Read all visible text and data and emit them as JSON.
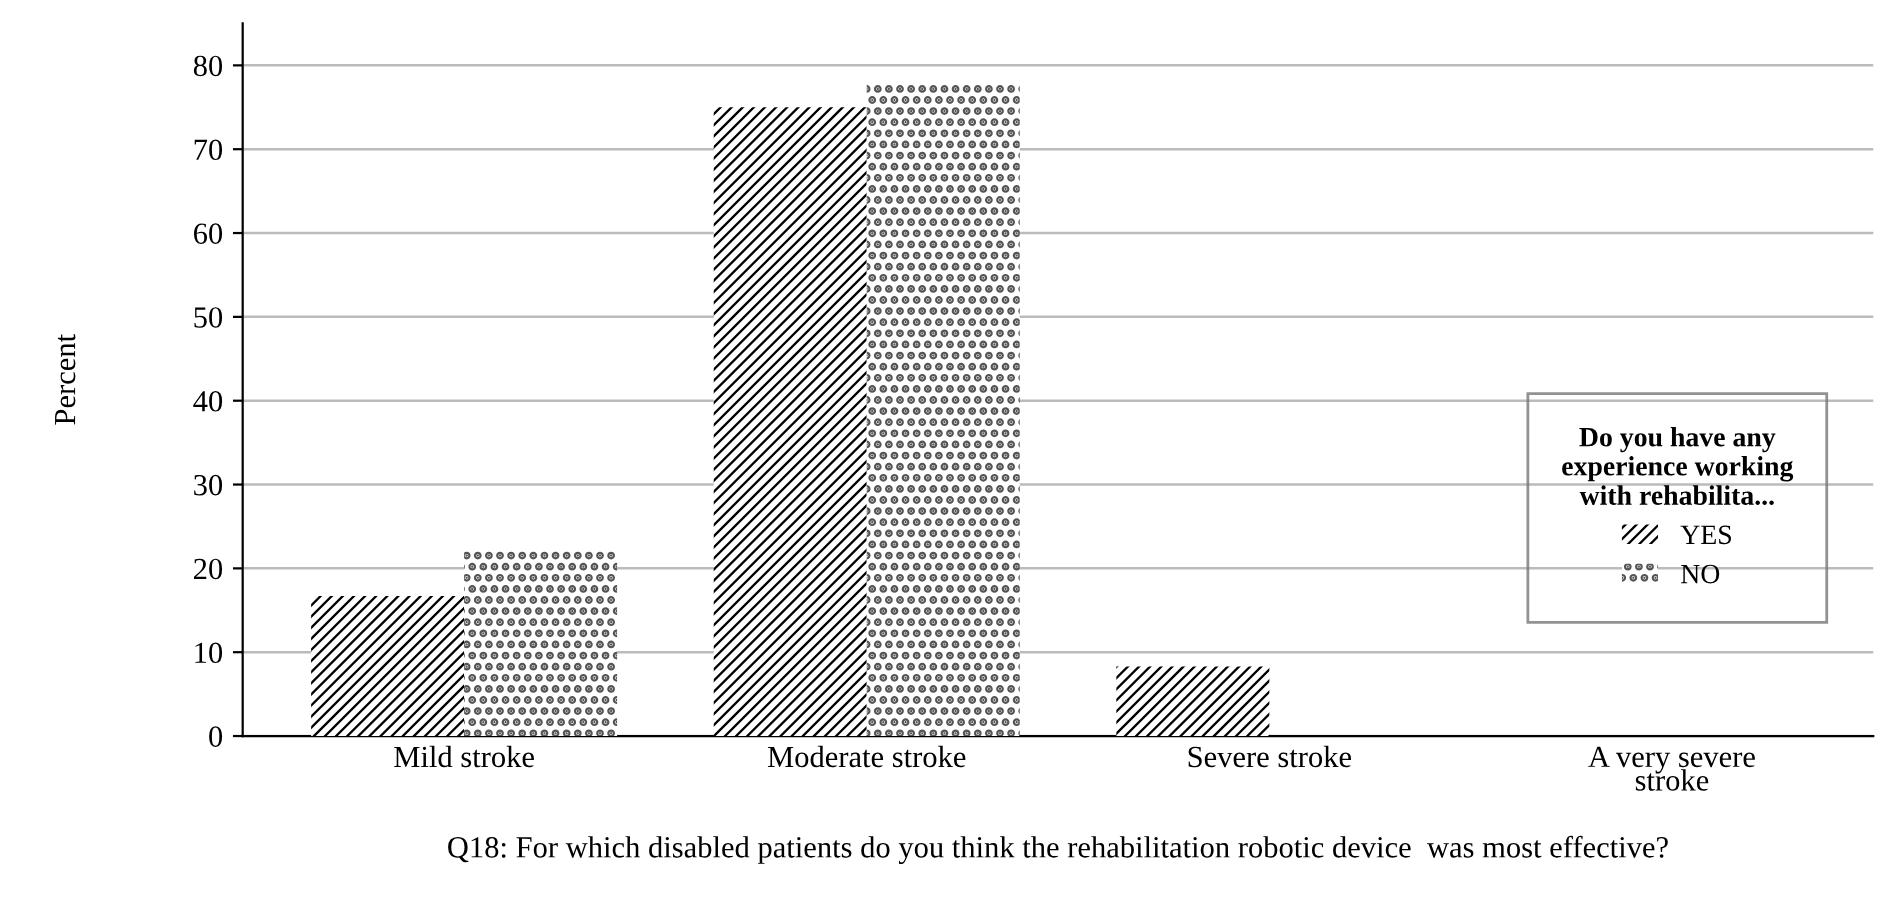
{
  "chart_data": {
    "type": "bar",
    "xlabel": "Q18: For which disabled patients do you think the rehabilitation robotic device  was most effective?",
    "ylabel": "Percent",
    "legend_title": "Do you have any experience working with rehabilita...",
    "categories": [
      "Mild stroke",
      "Moderate stroke",
      "Severe stroke",
      "A very severe stroke"
    ],
    "series": [
      {
        "name": "YES",
        "color": "#000000",
        "values": [
          16.7,
          75.0,
          8.3,
          0
        ]
      },
      {
        "name": "NO",
        "color": "#ffffff",
        "values": [
          22.2,
          77.8,
          0,
          0
        ]
      }
    ],
    "ylim": [
      0,
      85
    ],
    "yticks": [
      0,
      10,
      20,
      30,
      40,
      50,
      60,
      70,
      80
    ],
    "grid": "y",
    "legend": "right"
  }
}
